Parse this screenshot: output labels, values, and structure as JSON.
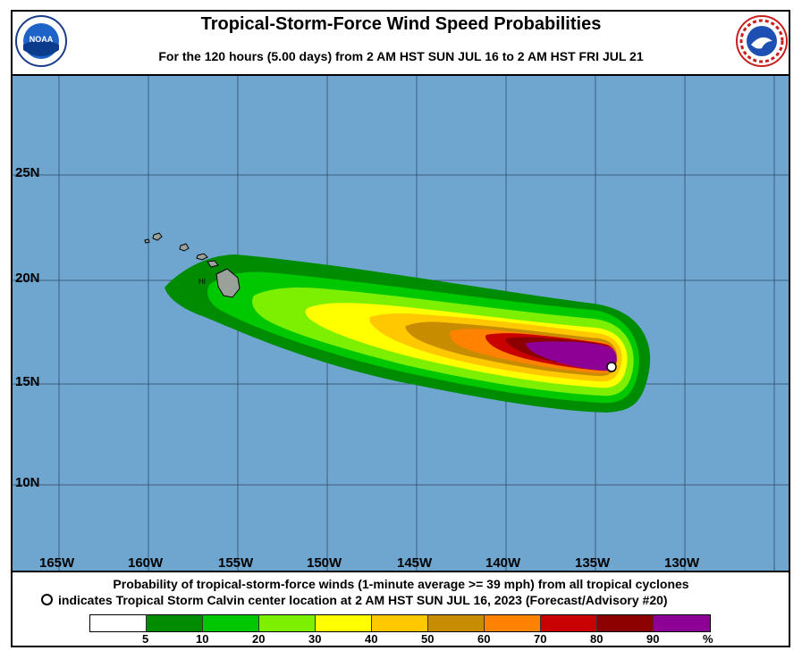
{
  "header": {
    "title": "Tropical-Storm-Force Wind Speed Probabilities",
    "subtitle": "For the 120 hours (5.00 days) from 2 AM HST SUN JUL 16 to 2 AM HST FRI JUL 21",
    "left_logo": "noaa-logo",
    "right_logo": "national-weather-service-logo"
  },
  "map": {
    "ocean_color": "#6fa6cf",
    "lat_labels": [
      "25N",
      "20N",
      "15N",
      "10N"
    ],
    "lon_labels": [
      "165W",
      "160W",
      "155W",
      "150W",
      "145W",
      "140W",
      "135W",
      "130W"
    ],
    "island_label": "HI",
    "storm_center": "Tropical Storm Calvin"
  },
  "caption": {
    "line1": "Probability of tropical-storm-force winds (1-minute average >= 39 mph) from all tropical cyclones",
    "line2": "indicates Tropical Storm Calvin center location at 2 AM HST SUN JUL 16, 2023 (Forecast/Advisory #20)"
  },
  "legend": {
    "colors": [
      "#ffffff",
      "#008c00",
      "#00c800",
      "#7cf000",
      "#ffff00",
      "#ffc800",
      "#c88c00",
      "#ff8200",
      "#c80000",
      "#8c0000",
      "#8c0096"
    ],
    "ticks": [
      "5",
      "10",
      "20",
      "30",
      "40",
      "50",
      "60",
      "70",
      "80",
      "90",
      "%"
    ]
  }
}
